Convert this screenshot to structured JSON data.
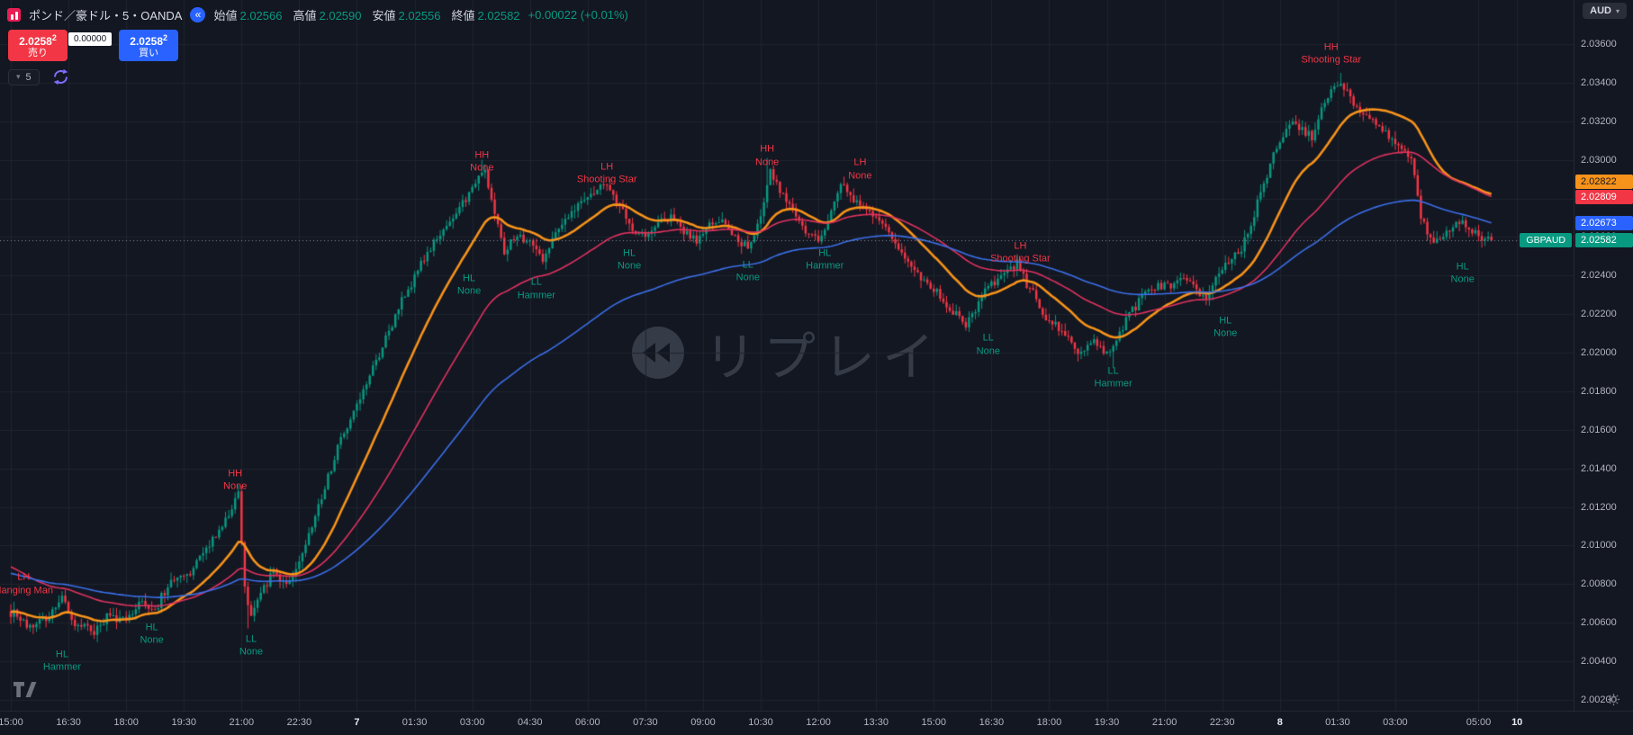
{
  "header": {
    "symbol_title": "ポンド／豪ドル・5・OANDA",
    "ohlc": [
      {
        "label": "始値",
        "value": "2.02566"
      },
      {
        "label": "高値",
        "value": "2.02590"
      },
      {
        "label": "安値",
        "value": "2.02556"
      },
      {
        "label": "終値",
        "value": "2.02582"
      }
    ],
    "change": "+0.00022 (+0.01%)",
    "currency": "AUD"
  },
  "trade_panel": {
    "sell": {
      "price_main": "2.0258",
      "price_sup": "2",
      "label": "売り"
    },
    "spread": "0.00000",
    "buy": {
      "price_main": "2.0258",
      "price_sup": "2",
      "label": "買い"
    },
    "countdown": "5"
  },
  "icons": {
    "jump_back": "«",
    "caret_down": "▾"
  },
  "watermark": {
    "text": "リプレイ"
  },
  "chart_data": {
    "type": "candlestick",
    "symbol": "GBPAUD",
    "symbol_title": "ポンド／豪ドル・5・OANDA",
    "timeframe_minutes": 5,
    "bars": 463,
    "last_price": 2.02582,
    "ylim": [
      2.002,
      2.036
    ],
    "colors": {
      "background": "#131722",
      "grid": "#20242f",
      "up": "#089981",
      "down": "#f23645",
      "last_price_line": "#8a93a0"
    },
    "price_axis": {
      "min": 2.002,
      "max": 2.036,
      "step": 0.002,
      "decimals": 5
    },
    "time_ticks": [
      {
        "bar": 0,
        "label": "15:00"
      },
      {
        "bar": 18,
        "label": "16:30"
      },
      {
        "bar": 36,
        "label": "18:00"
      },
      {
        "bar": 54,
        "label": "19:30"
      },
      {
        "bar": 72,
        "label": "21:00"
      },
      {
        "bar": 90,
        "label": "22:30"
      },
      {
        "bar": 108,
        "label": "7",
        "emph": true
      },
      {
        "bar": 126,
        "label": "01:30"
      },
      {
        "bar": 144,
        "label": "03:00"
      },
      {
        "bar": 162,
        "label": "04:30"
      },
      {
        "bar": 180,
        "label": "06:00"
      },
      {
        "bar": 198,
        "label": "07:30"
      },
      {
        "bar": 216,
        "label": "09:00"
      },
      {
        "bar": 234,
        "label": "10:30"
      },
      {
        "bar": 252,
        "label": "12:00"
      },
      {
        "bar": 270,
        "label": "13:30"
      },
      {
        "bar": 288,
        "label": "15:00"
      },
      {
        "bar": 306,
        "label": "16:30"
      },
      {
        "bar": 324,
        "label": "18:00"
      },
      {
        "bar": 342,
        "label": "19:30"
      },
      {
        "bar": 360,
        "label": "21:00"
      },
      {
        "bar": 378,
        "label": "22:30"
      },
      {
        "bar": 396,
        "label": "8",
        "emph": true
      },
      {
        "bar": 414,
        "label": "01:30"
      },
      {
        "bar": 432,
        "label": "03:00"
      },
      {
        "bar": 458,
        "label": "05:00"
      },
      {
        "bar": 470,
        "label": "10",
        "emph": true
      }
    ],
    "waypoints": [
      [
        0,
        2.0066
      ],
      [
        6,
        2.0058
      ],
      [
        12,
        2.0064
      ],
      [
        16,
        2.0072
      ],
      [
        20,
        2.006
      ],
      [
        26,
        2.0056
      ],
      [
        30,
        2.0063
      ],
      [
        36,
        2.006
      ],
      [
        40,
        2.007
      ],
      [
        44,
        2.0066
      ],
      [
        50,
        2.008
      ],
      [
        56,
        2.0086
      ],
      [
        60,
        2.0095
      ],
      [
        64,
        2.0105
      ],
      [
        68,
        2.0118
      ],
      [
        71,
        2.0128
      ],
      [
        73,
        2.0078
      ],
      [
        75,
        2.0062
      ],
      [
        78,
        2.0076
      ],
      [
        82,
        2.0086
      ],
      [
        86,
        2.0079
      ],
      [
        90,
        2.009
      ],
      [
        94,
        2.011
      ],
      [
        98,
        2.013
      ],
      [
        102,
        2.015
      ],
      [
        106,
        2.0165
      ],
      [
        110,
        2.018
      ],
      [
        114,
        2.0196
      ],
      [
        118,
        2.021
      ],
      [
        122,
        2.0226
      ],
      [
        126,
        2.024
      ],
      [
        130,
        2.0252
      ],
      [
        134,
        2.0262
      ],
      [
        138,
        2.027
      ],
      [
        142,
        2.028
      ],
      [
        146,
        2.0292
      ],
      [
        148,
        2.0295
      ],
      [
        151,
        2.0272
      ],
      [
        154,
        2.0252
      ],
      [
        158,
        2.0262
      ],
      [
        162,
        2.0256
      ],
      [
        166,
        2.0248
      ],
      [
        170,
        2.0262
      ],
      [
        174,
        2.0271
      ],
      [
        178,
        2.0278
      ],
      [
        182,
        2.0283
      ],
      [
        186,
        2.0288
      ],
      [
        190,
        2.0276
      ],
      [
        194,
        2.0264
      ],
      [
        198,
        2.0259
      ],
      [
        202,
        2.0266
      ],
      [
        206,
        2.0271
      ],
      [
        210,
        2.0263
      ],
      [
        214,
        2.0259
      ],
      [
        218,
        2.0266
      ],
      [
        222,
        2.0268
      ],
      [
        226,
        2.0261
      ],
      [
        230,
        2.0253
      ],
      [
        234,
        2.0272
      ],
      [
        237,
        2.0296
      ],
      [
        240,
        2.0282
      ],
      [
        244,
        2.0273
      ],
      [
        248,
        2.0263
      ],
      [
        252,
        2.0259
      ],
      [
        256,
        2.0272
      ],
      [
        259,
        2.0286
      ],
      [
        263,
        2.0279
      ],
      [
        267,
        2.0273
      ],
      [
        270,
        2.027
      ],
      [
        274,
        2.0262
      ],
      [
        278,
        2.0251
      ],
      [
        282,
        2.0243
      ],
      [
        286,
        2.0236
      ],
      [
        290,
        2.0229
      ],
      [
        294,
        2.0221
      ],
      [
        298,
        2.0215
      ],
      [
        302,
        2.0226
      ],
      [
        306,
        2.0236
      ],
      [
        310,
        2.0241
      ],
      [
        314,
        2.0246
      ],
      [
        318,
        2.0233
      ],
      [
        322,
        2.0221
      ],
      [
        326,
        2.0213
      ],
      [
        330,
        2.0206
      ],
      [
        334,
        2.0201
      ],
      [
        338,
        2.0206
      ],
      [
        342,
        2.0198
      ],
      [
        346,
        2.0211
      ],
      [
        350,
        2.0223
      ],
      [
        354,
        2.0231
      ],
      [
        358,
        2.0236
      ],
      [
        362,
        2.0233
      ],
      [
        366,
        2.0241
      ],
      [
        370,
        2.0234
      ],
      [
        373,
        2.0228
      ],
      [
        376,
        2.0239
      ],
      [
        380,
        2.0246
      ],
      [
        384,
        2.0253
      ],
      [
        388,
        2.0271
      ],
      [
        391,
        2.0288
      ],
      [
        394,
        2.0303
      ],
      [
        397,
        2.0312
      ],
      [
        400,
        2.0321
      ],
      [
        403,
        2.0316
      ],
      [
        406,
        2.0311
      ],
      [
        409,
        2.0326
      ],
      [
        412,
        2.0336
      ],
      [
        415,
        2.0342
      ],
      [
        418,
        2.0331
      ],
      [
        422,
        2.0323
      ],
      [
        426,
        2.0318
      ],
      [
        430,
        2.0311
      ],
      [
        434,
        2.0306
      ],
      [
        437,
        2.0301
      ],
      [
        440,
        2.0269
      ],
      [
        444,
        2.0256
      ],
      [
        448,
        2.0263
      ],
      [
        452,
        2.0269
      ],
      [
        456,
        2.0263
      ],
      [
        459,
        2.0259
      ],
      [
        462,
        2.02582
      ]
    ],
    "spikes": [
      {
        "bar": 72,
        "high": 2.0131
      },
      {
        "bar": 74,
        "low": 2.0057
      },
      {
        "bar": 147,
        "high": 2.03
      },
      {
        "bar": 236,
        "high": 2.0301
      },
      {
        "bar": 344,
        "low": 2.0192
      },
      {
        "bar": 415,
        "high": 2.0345
      }
    ],
    "moving_averages": [
      {
        "name": "ma-orange-fast",
        "period": 22,
        "color": "#f7931a",
        "width": 2.6,
        "seed": 2.0066,
        "last": 2.02822
      },
      {
        "name": "ma-red-mid",
        "period": 55,
        "color": "#e0325f",
        "width": 1.6,
        "seed": 2.009,
        "last": 2.02809
      },
      {
        "name": "ma-blue-slow",
        "period": 110,
        "color": "#3b6fe8",
        "width": 1.6,
        "seed": 2.0086,
        "last": 2.02673
      }
    ],
    "price_tags": [
      {
        "value": 2.02822,
        "label": "2.02822",
        "bg": "#f7931a",
        "fg": "#131722"
      },
      {
        "value": 2.02809,
        "label": "2.02809",
        "bg": "#f23645",
        "fg": "#ffffff"
      },
      {
        "value": 2.02673,
        "label": "2.02673",
        "bg": "#2962ff",
        "fg": "#ffffff"
      },
      {
        "value": 2.02582,
        "label": "2.02582",
        "bg": "#089981",
        "fg": "#ffffff",
        "symbol": "GBPAUD"
      }
    ],
    "annotations": [
      {
        "bar": 4,
        "price": 2.008,
        "type": "LH",
        "name": "Hanging Man",
        "side": "bear"
      },
      {
        "bar": 16,
        "price": 2.004,
        "type": "HL",
        "name": "Hammer",
        "side": "bull"
      },
      {
        "bar": 44,
        "price": 2.0054,
        "type": "HL",
        "name": "None",
        "side": "bull"
      },
      {
        "bar": 70,
        "price": 2.0134,
        "type": "HH",
        "name": "None",
        "side": "bear"
      },
      {
        "bar": 75,
        "price": 2.0048,
        "type": "LL",
        "name": "None",
        "side": "bull"
      },
      {
        "bar": 143,
        "price": 2.0235,
        "type": "HL",
        "name": "None",
        "side": "bull"
      },
      {
        "bar": 147,
        "price": 2.0299,
        "type": "HH",
        "name": "None",
        "side": "bear"
      },
      {
        "bar": 164,
        "price": 2.0233,
        "type": "LL",
        "name": "Hammer",
        "side": "bull"
      },
      {
        "bar": 186,
        "price": 2.0293,
        "type": "LH",
        "name": "Shooting Star",
        "side": "bear"
      },
      {
        "bar": 193,
        "price": 2.0248,
        "type": "HL",
        "name": "None",
        "side": "bull"
      },
      {
        "bar": 230,
        "price": 2.0242,
        "type": "LL",
        "name": "None",
        "side": "bull"
      },
      {
        "bar": 236,
        "price": 2.0302,
        "type": "HH",
        "name": "None",
        "side": "bear"
      },
      {
        "bar": 254,
        "price": 2.0248,
        "type": "HL",
        "name": "Hammer",
        "side": "bull"
      },
      {
        "bar": 265,
        "price": 2.0295,
        "type": "LH",
        "name": "None",
        "side": "bear"
      },
      {
        "bar": 305,
        "price": 2.0204,
        "type": "LL",
        "name": "None",
        "side": "bull"
      },
      {
        "bar": 315,
        "price": 2.0252,
        "type": "LH",
        "name": "Shooting Star",
        "side": "bear"
      },
      {
        "bar": 344,
        "price": 2.0187,
        "type": "LL",
        "name": "Hammer",
        "side": "bull"
      },
      {
        "bar": 379,
        "price": 2.0213,
        "type": "HL",
        "name": "None",
        "side": "bull"
      },
      {
        "bar": 412,
        "price": 2.0355,
        "type": "HH",
        "name": "Shooting Star",
        "side": "bear"
      },
      {
        "bar": 453,
        "price": 2.0241,
        "type": "HL",
        "name": "None",
        "side": "bull"
      }
    ]
  }
}
